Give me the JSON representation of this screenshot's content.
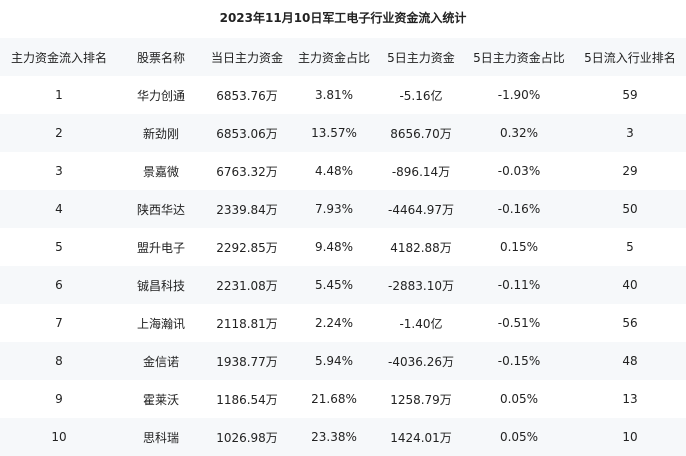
{
  "title": "2023年11月10日军工电子行业资金流入统计",
  "columns": [
    "主力资金流入排名",
    "股票名称",
    "当日主力资金",
    "主力资金占比",
    "5日主力资金",
    "5日主力资金占比",
    "5日流入行业排名"
  ],
  "rows": [
    [
      "1",
      "华力创通",
      "6853.76万",
      "3.81%",
      "-5.16亿",
      "-1.90%",
      "59"
    ],
    [
      "2",
      "新劲刚",
      "6853.06万",
      "13.57%",
      "8656.70万",
      "0.32%",
      "3"
    ],
    [
      "3",
      "景嘉微",
      "6763.32万",
      "4.48%",
      "-896.14万",
      "-0.03%",
      "29"
    ],
    [
      "4",
      "陕西华达",
      "2339.84万",
      "7.93%",
      "-4464.97万",
      "-0.16%",
      "50"
    ],
    [
      "5",
      "盟升电子",
      "2292.85万",
      "9.48%",
      "4182.88万",
      "0.15%",
      "5"
    ],
    [
      "6",
      "铖昌科技",
      "2231.08万",
      "5.45%",
      "-2883.10万",
      "-0.11%",
      "40"
    ],
    [
      "7",
      "上海瀚讯",
      "2118.81万",
      "2.24%",
      "-1.40亿",
      "-0.51%",
      "56"
    ],
    [
      "8",
      "金信诺",
      "1938.77万",
      "5.94%",
      "-4036.26万",
      "-0.15%",
      "48"
    ],
    [
      "9",
      "霍莱沃",
      "1186.54万",
      "21.68%",
      "1258.79万",
      "0.05%",
      "13"
    ],
    [
      "10",
      "思科瑞",
      "1026.98万",
      "23.38%",
      "1424.01万",
      "0.05%",
      "10"
    ]
  ],
  "colors": {
    "stripe": "#f6f8fa",
    "text": "#222222"
  }
}
